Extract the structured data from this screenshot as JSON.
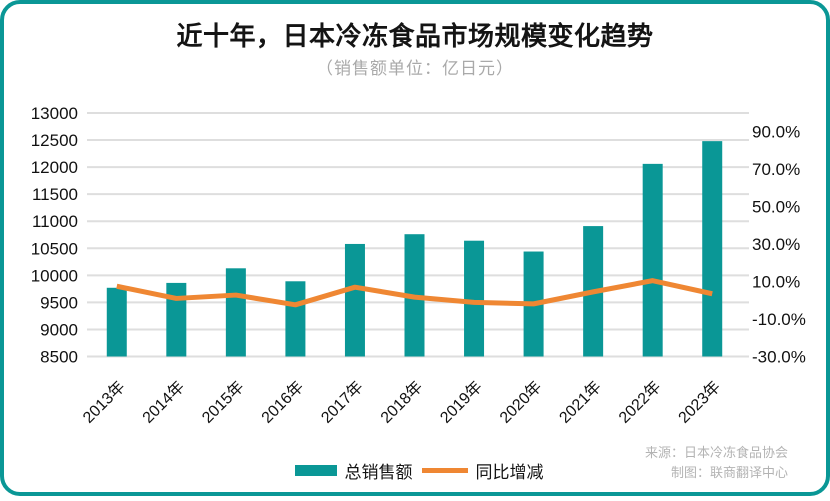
{
  "header": {
    "title": "近十年，日本冷冻食品市场规模变化趋势",
    "subtitle": "（销售额单位：亿日元）"
  },
  "legend": {
    "items": [
      {
        "label": "总销售额",
        "swatch": "bar-swatch"
      },
      {
        "label": "同比增减",
        "swatch": "line-swatch"
      }
    ]
  },
  "footer": {
    "source": "来源：日本冷冻食品协会",
    "credit": "制图：联商翻译中心"
  },
  "colors": {
    "bar": "#0a9796",
    "line": "#ef8733",
    "border": "#0a9796",
    "grid": "#dedede",
    "axis_text": "#111111",
    "subtitle_text": "#a9a9a9",
    "footer_text": "#b3b3b3"
  },
  "chart_data": {
    "type": "bar",
    "title": "近十年，日本冷冻食品市场规模变化趋势",
    "subtitle": "（销售额单位：亿日元）",
    "categories": [
      "2013年",
      "2014年",
      "2015年",
      "2016年",
      "2017年",
      "2018年",
      "2019年",
      "2020年",
      "2021年",
      "2022年",
      "2023年"
    ],
    "series": [
      {
        "name": "总销售额",
        "type": "bar",
        "yaxis": "left",
        "values": [
          9770,
          9860,
          10130,
          9890,
          10580,
          10760,
          10640,
          10440,
          10910,
          12060,
          12480
        ]
      },
      {
        "name": "同比增减",
        "type": "line",
        "yaxis": "right",
        "values": [
          7.5,
          1.0,
          2.8,
          -2.4,
          7.0,
          1.7,
          -1.1,
          -1.9,
          4.5,
          10.5,
          3.5
        ]
      }
    ],
    "left_axis": {
      "min": 8500,
      "max": 13000,
      "step": 500,
      "ticks": [
        13000,
        12500,
        12000,
        11500,
        11000,
        10500,
        10000,
        9500,
        9000,
        8500
      ]
    },
    "right_axis": {
      "min": -30,
      "max": 100,
      "step": 20,
      "tick_values": [
        90,
        70,
        50,
        30,
        10,
        -10,
        -30
      ],
      "tick_labels": [
        "90.0%",
        "70.0%",
        "50.0%",
        "30.0%",
        "10.0%",
        "-10.0%",
        "-30.0%"
      ]
    },
    "grid": true,
    "legend_position": "bottom"
  }
}
